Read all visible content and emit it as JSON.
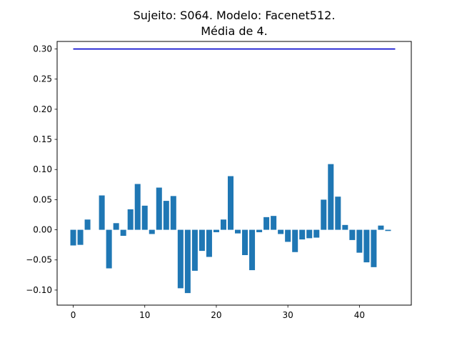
{
  "chart_data": {
    "type": "bar",
    "title_line1": "Sujeito: S064. Modelo: Facenet512.",
    "title_line2": "Média de 4.",
    "xlabel": "",
    "ylabel": "",
    "xlim": [
      -2.25,
      47.25
    ],
    "ylim": [
      -0.125,
      0.3125
    ],
    "x_ticks": [
      0,
      10,
      20,
      30,
      40
    ],
    "y_ticks": [
      -0.1,
      -0.05,
      0.0,
      0.05,
      0.1,
      0.15,
      0.2,
      0.25,
      0.3
    ],
    "y_tick_labels": [
      "−0.10",
      "−0.05",
      "0.00",
      "0.05",
      "0.10",
      "0.15",
      "0.20",
      "0.25",
      "0.30"
    ],
    "bar_color": "#1f77b4",
    "x": [
      0,
      1,
      2,
      3,
      4,
      5,
      6,
      7,
      8,
      9,
      10,
      11,
      12,
      13,
      14,
      15,
      16,
      17,
      18,
      19,
      20,
      21,
      22,
      23,
      24,
      25,
      26,
      27,
      28,
      29,
      30,
      31,
      32,
      33,
      34,
      35,
      36,
      37,
      38,
      39,
      40,
      41,
      42,
      43,
      44
    ],
    "values": [
      -0.026,
      -0.025,
      0.017,
      0.0,
      0.057,
      -0.064,
      0.011,
      -0.01,
      0.034,
      0.076,
      0.04,
      -0.007,
      0.07,
      0.048,
      0.056,
      -0.097,
      -0.105,
      -0.068,
      -0.035,
      -0.045,
      -0.004,
      0.017,
      0.089,
      -0.006,
      -0.042,
      -0.067,
      -0.004,
      0.021,
      0.023,
      -0.007,
      -0.02,
      -0.037,
      -0.016,
      -0.014,
      -0.013,
      0.05,
      0.109,
      0.055,
      0.008,
      -0.017,
      -0.038,
      -0.054,
      -0.062,
      0.007,
      -0.002
    ],
    "threshold_line": {
      "y": 0.3,
      "x_start": 0,
      "x_end": 45,
      "color": "#0000cd"
    }
  }
}
